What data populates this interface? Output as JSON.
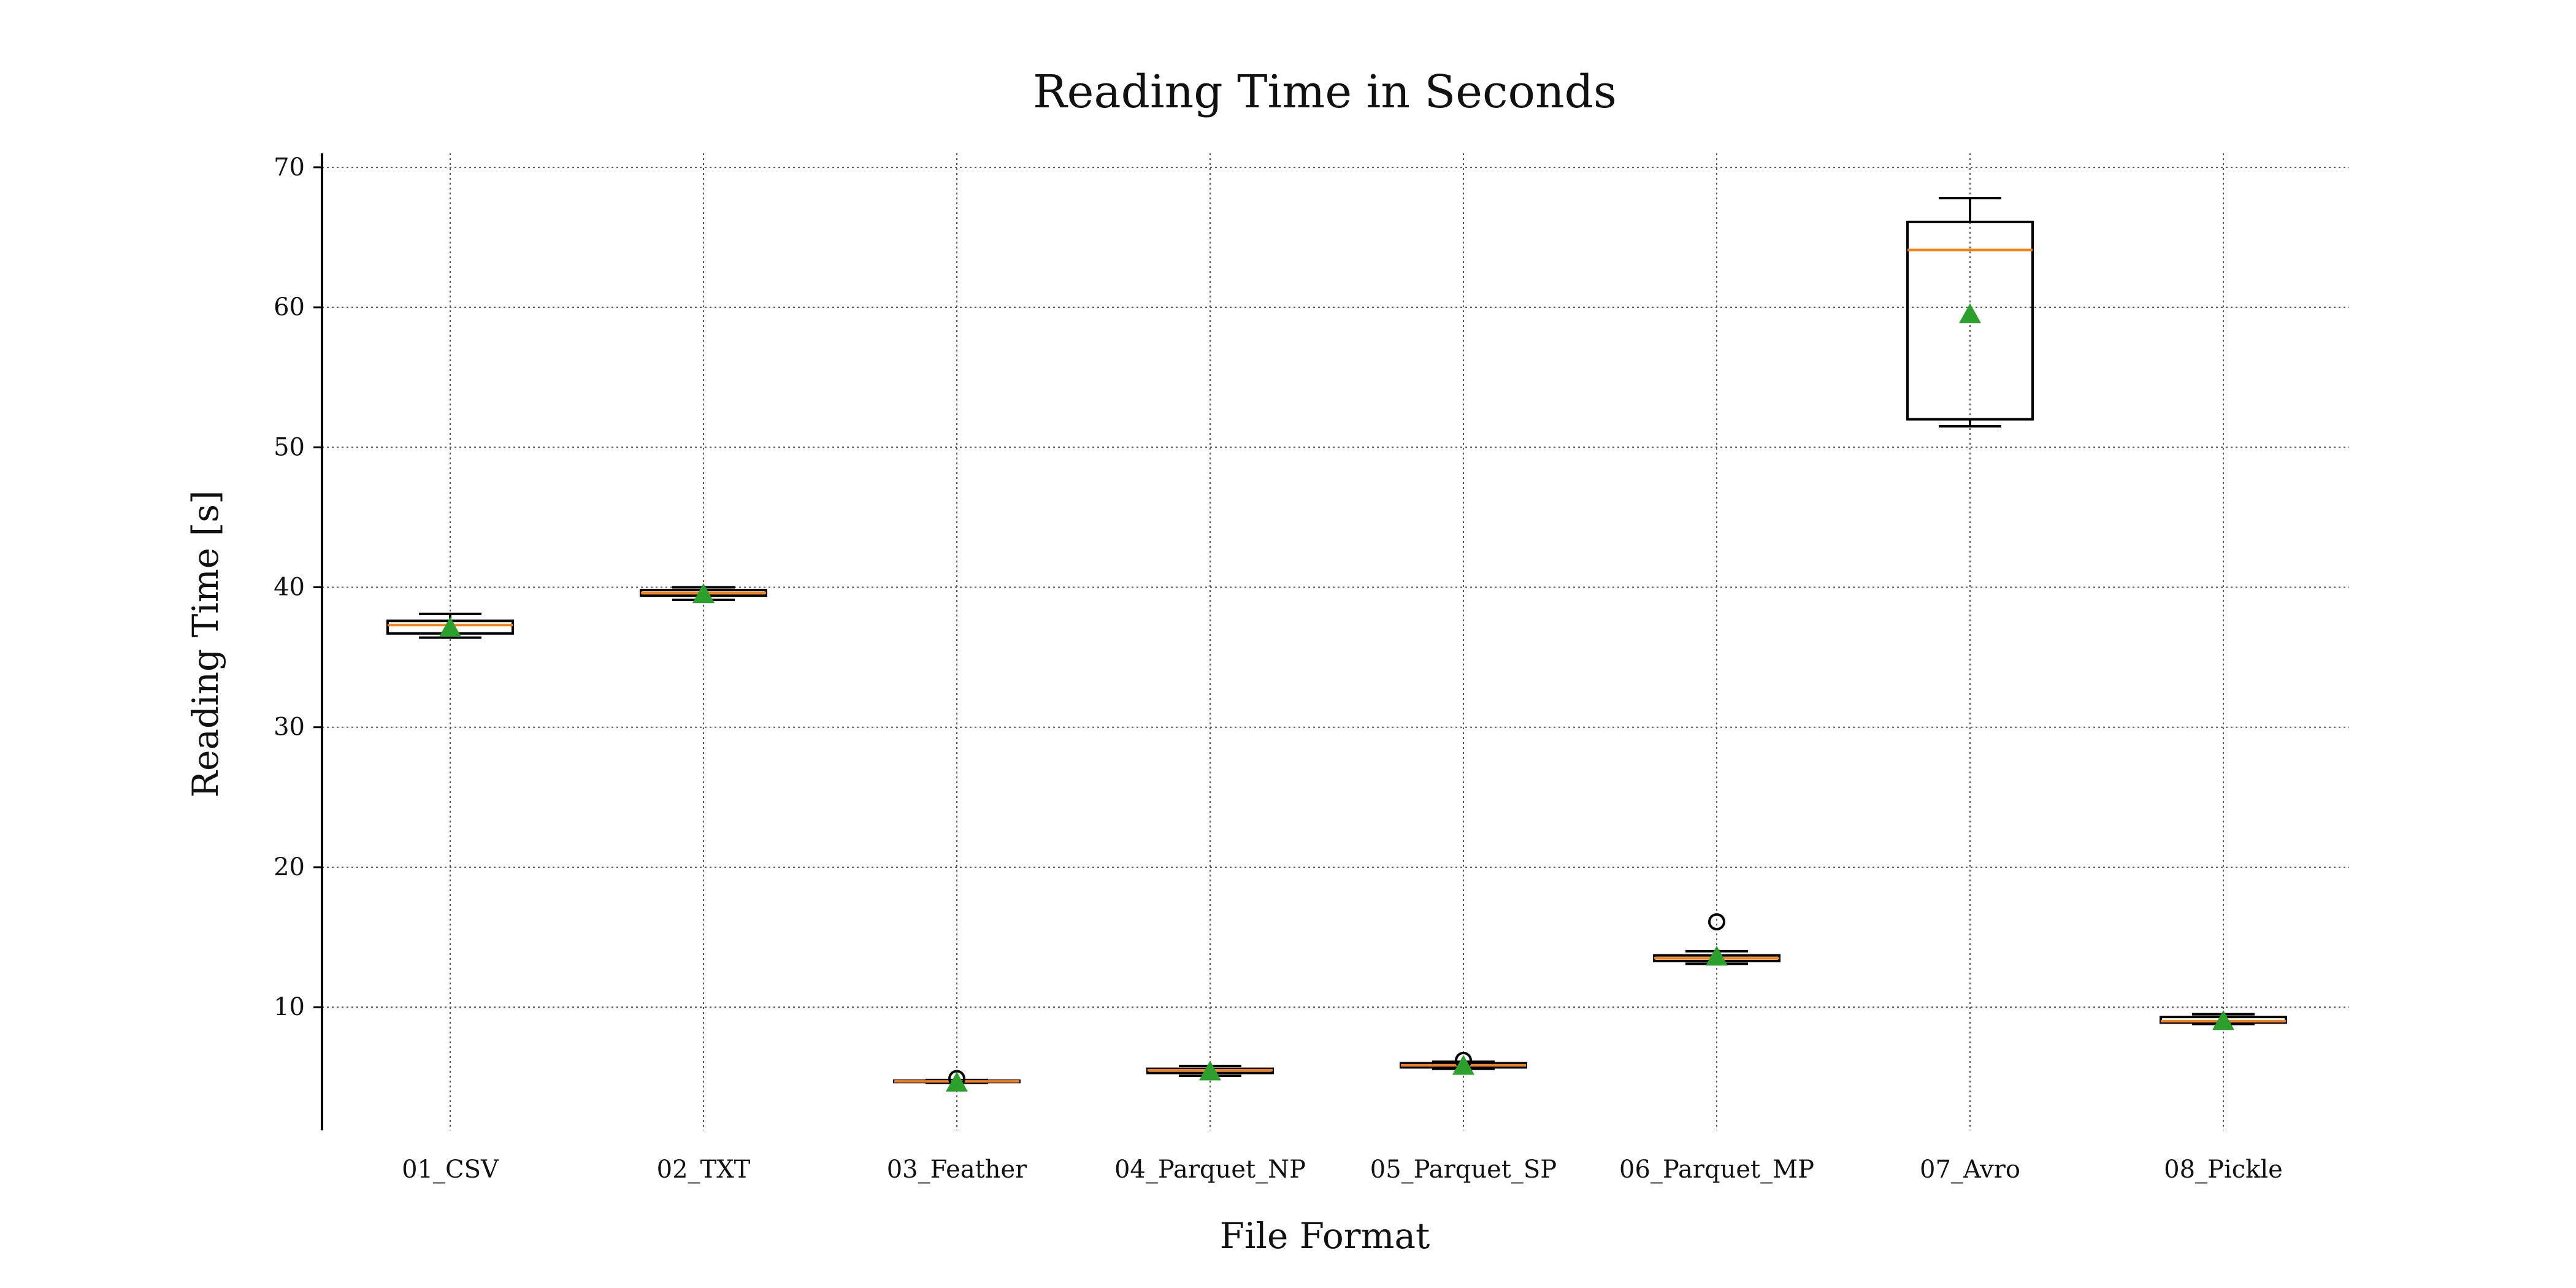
{
  "chart_data": {
    "type": "boxplot",
    "title": "Reading Time in Seconds",
    "xlabel": "File Format",
    "ylabel": "Reading Time [s]",
    "ylim": [
      1.2,
      71.0
    ],
    "yticks": [
      10,
      20,
      30,
      40,
      50,
      60,
      70
    ],
    "grid": true,
    "categories": [
      "01_CSV",
      "02_TXT",
      "03_Feather",
      "04_Parquet_NP",
      "05_Parquet_SP",
      "06_Parquet_MP",
      "07_Avro",
      "08_Pickle"
    ],
    "boxes": [
      {
        "whisker_low": 36.4,
        "q1": 36.7,
        "median": 37.3,
        "q3": 37.6,
        "whisker_high": 38.1,
        "mean": 37.1,
        "outliers": []
      },
      {
        "whisker_low": 39.1,
        "q1": 39.4,
        "median": 39.6,
        "q3": 39.8,
        "whisker_high": 40.0,
        "mean": 39.5,
        "outliers": []
      },
      {
        "whisker_low": 4.6,
        "q1": 4.65,
        "median": 4.7,
        "q3": 4.75,
        "whisker_high": 4.8,
        "mean": 4.6,
        "outliers": [
          4.9
        ]
      },
      {
        "whisker_low": 5.1,
        "q1": 5.3,
        "median": 5.5,
        "q3": 5.6,
        "whisker_high": 5.8,
        "mean": 5.4,
        "outliers": []
      },
      {
        "whisker_low": 5.6,
        "q1": 5.7,
        "median": 5.85,
        "q3": 6.0,
        "whisker_high": 6.1,
        "mean": 5.8,
        "outliers": [
          6.2
        ]
      },
      {
        "whisker_low": 13.1,
        "q1": 13.3,
        "median": 13.5,
        "q3": 13.7,
        "whisker_high": 14.0,
        "mean": 13.6,
        "outliers": [
          16.1
        ]
      },
      {
        "whisker_low": 51.5,
        "q1": 52.0,
        "median": 64.1,
        "q3": 66.1,
        "whisker_high": 67.8,
        "mean": 59.5,
        "outliers": []
      },
      {
        "whisker_low": 8.8,
        "q1": 8.9,
        "median": 9.0,
        "q3": 9.3,
        "whisker_high": 9.5,
        "mean": 9.0,
        "outliers": []
      }
    ],
    "colors": {
      "box": "#000000",
      "median": "#ff7f0e",
      "mean_marker": "#2ca02c",
      "grid": "#555555"
    }
  }
}
